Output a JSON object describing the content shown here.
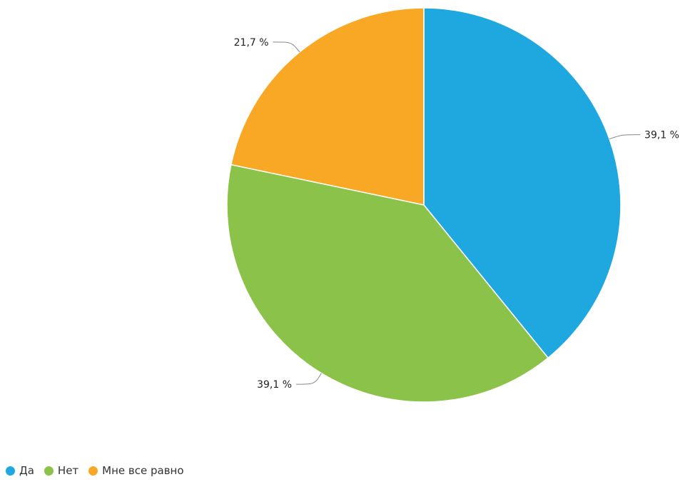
{
  "chart_data": {
    "type": "pie",
    "categories": [
      "Да",
      "Нет",
      "Мне все равно"
    ],
    "values": [
      39.1,
      39.1,
      21.7
    ],
    "data_labels": [
      "39,1 %",
      "39,1 %",
      "21,7 %"
    ],
    "colors": [
      "#1fa8e0",
      "#8bc34a",
      "#f9a825"
    ],
    "legend_position": "bottom-left",
    "start_angle_deg": 0,
    "direction": "clockwise"
  }
}
